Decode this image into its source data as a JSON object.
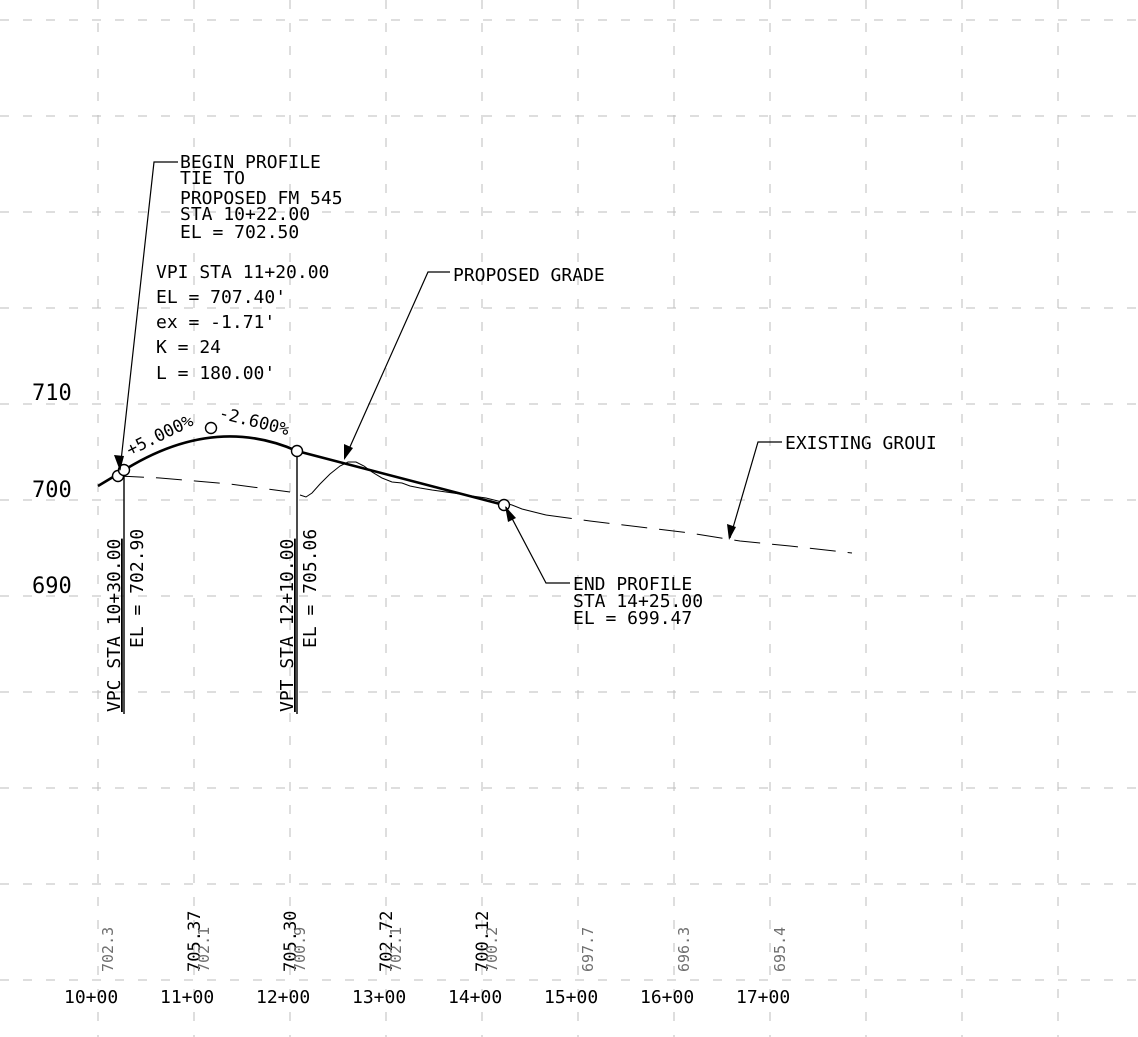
{
  "elevation_labels": [
    "710",
    "700",
    "690"
  ],
  "station_labels": [
    "10+00",
    "11+00",
    "12+00",
    "13+00",
    "14+00",
    "15+00",
    "16+00",
    "17+00"
  ],
  "begin_profile": {
    "lines": [
      "BEGIN PROFILE",
      "TIE TO",
      "PROPOSED FM 545",
      "STA 10+22.00",
      "EL = 702.50"
    ]
  },
  "vpi": {
    "lines": [
      "VPI STA 11+20.00",
      "EL = 707.40'",
      "ex = -1.71'",
      "K = 24",
      "L = 180.00'"
    ]
  },
  "proposed_grade_label": "PROPOSED GRADE",
  "existing_ground_label": "EXISTING GROUI",
  "grade_in": "+5.000%",
  "grade_out": "-2.600%",
  "vpc": {
    "sta": "VPC STA 10+30.00",
    "el": "EL = 702.90"
  },
  "vpt": {
    "sta": "VPT STA 12+10.00",
    "el": "EL = 705.06"
  },
  "end_profile": {
    "lines": [
      "END PROFILE",
      "STA 14+25.00",
      "EL = 699.47"
    ]
  },
  "bottom_values": {
    "proposed": [
      "705.37",
      "705.30",
      "702.72",
      "700.12"
    ],
    "existing": [
      "702.3",
      "702.1",
      "700.9",
      "702.1",
      "700.2",
      "697.7",
      "696.3",
      "695.4"
    ]
  },
  "colors": {
    "ink": "#000000",
    "grid": "#bdbdbd",
    "gray_text": "#6f6f6f"
  }
}
